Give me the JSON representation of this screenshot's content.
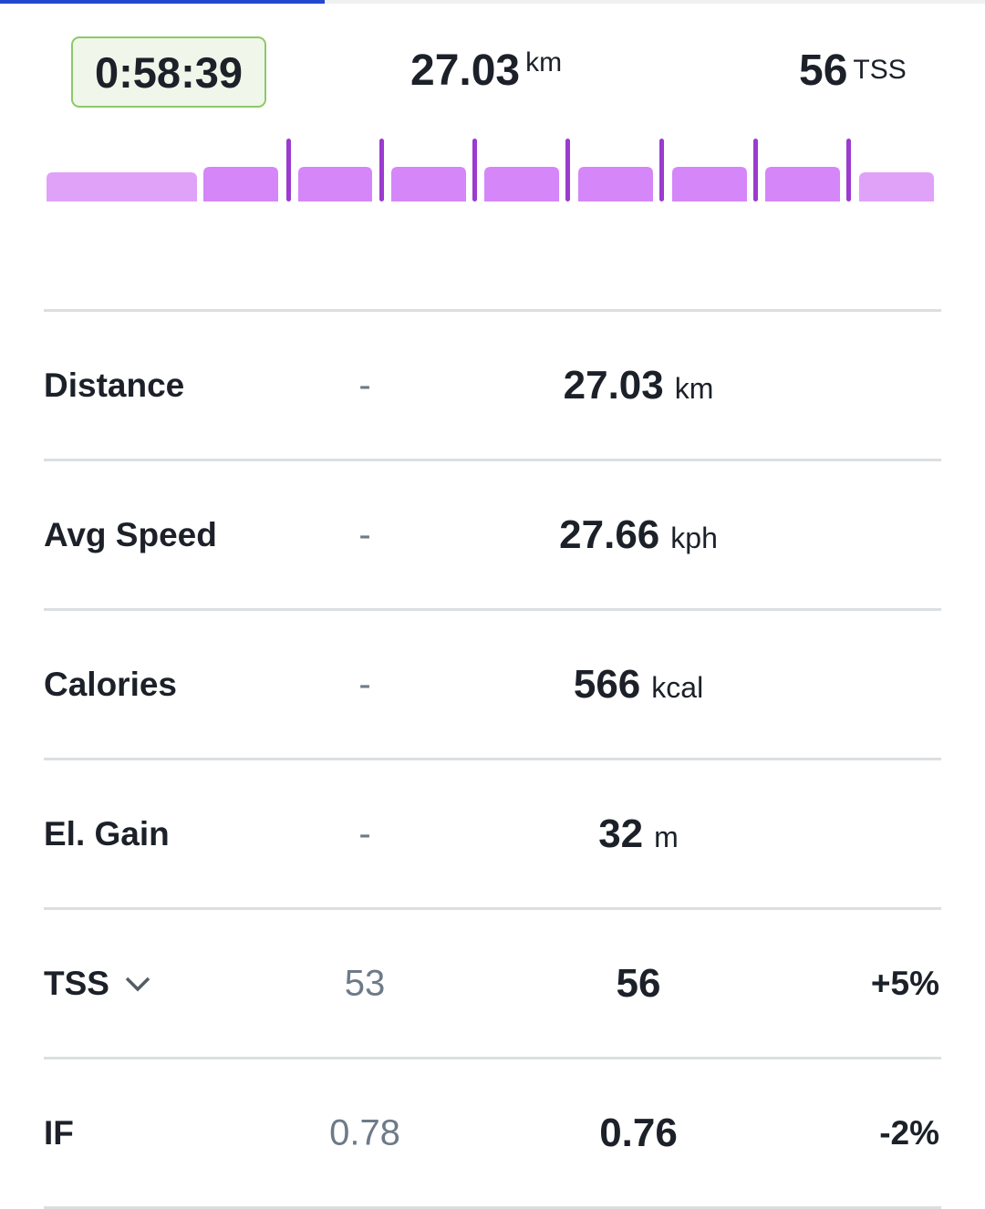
{
  "progress_percent": 33,
  "header": {
    "duration": "0:58:39",
    "distance": {
      "value": "27.03",
      "unit": "km"
    },
    "tss": {
      "value": "56",
      "unit": "TSS"
    }
  },
  "workout_intervals": {
    "colors": {
      "low": "#e0a2f8",
      "high": "#d586f8",
      "marker": "#9b3bcf"
    },
    "segments": [
      "low",
      "high",
      "high",
      "high",
      "high",
      "high",
      "high",
      "high",
      "low"
    ],
    "markers_after_segment": [
      2,
      3,
      4,
      5,
      6,
      7,
      8
    ]
  },
  "metrics": [
    {
      "label": "Distance",
      "planned": "-",
      "actual": "27.03",
      "unit": "km",
      "delta": ""
    },
    {
      "label": "Avg Speed",
      "planned": "-",
      "actual": "27.66",
      "unit": "kph",
      "delta": ""
    },
    {
      "label": "Calories",
      "planned": "-",
      "actual": "566",
      "unit": "kcal",
      "delta": ""
    },
    {
      "label": "El. Gain",
      "planned": "-",
      "actual": "32",
      "unit": "m",
      "delta": ""
    },
    {
      "label": "TSS",
      "planned": "53",
      "actual": "56",
      "unit": "",
      "delta": "+5%",
      "dropdown": true
    },
    {
      "label": "IF",
      "planned": "0.78",
      "actual": "0.76",
      "unit": "",
      "delta": "-2%"
    }
  ]
}
